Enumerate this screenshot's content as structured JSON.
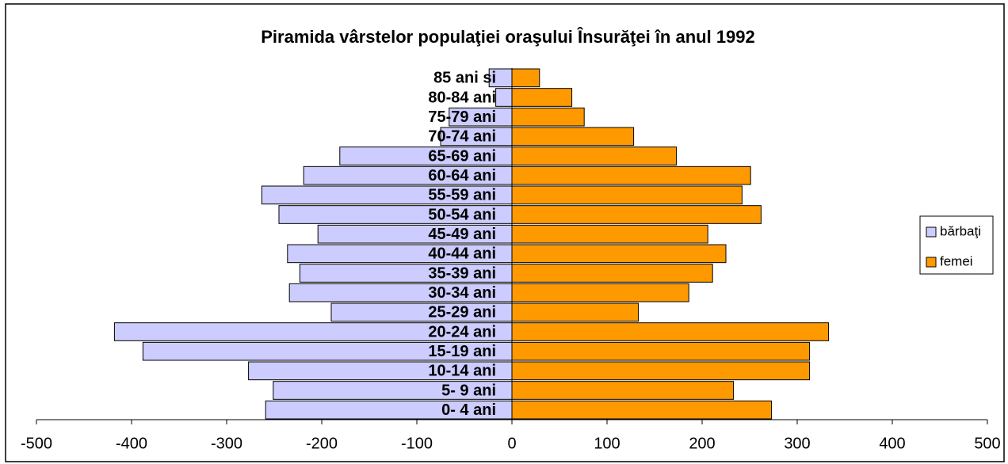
{
  "chart_data": {
    "type": "bar",
    "orientation": "horizontal",
    "barmode": "overlay",
    "title": "Piramida vârstelor populaţiei oraşului Însurăţei în anul 1992",
    "categories": [
      "0- 4 ani",
      "5- 9 ani",
      "10-14 ani",
      "15-19 ani",
      "20-24 ani",
      "25-29 ani",
      "30-34 ani",
      "35-39 ani",
      "40-44 ani",
      "45-49 ani",
      "50-54 ani",
      "55-59 ani",
      "60-64 ani",
      "65-69 ani",
      "70-74 ani",
      "75-79 ani",
      "80-84 ani",
      "85 ani si"
    ],
    "series": [
      {
        "name": "bărbaţi",
        "color": "#ccccff",
        "values": [
          -259,
          -251,
          -277,
          -388,
          -418,
          -190,
          -234,
          -223,
          -236,
          -204,
          -245,
          -263,
          -219,
          -181,
          -75,
          -66,
          -17,
          -24
        ]
      },
      {
        "name": "femei",
        "color": "#ff9900",
        "values": [
          273,
          233,
          313,
          313,
          333,
          133,
          186,
          211,
          225,
          206,
          262,
          242,
          251,
          173,
          128,
          76,
          63,
          29
        ]
      }
    ],
    "xlim": [
      -500,
      500
    ],
    "xticks": [
      -500,
      -400,
      -300,
      -200,
      -100,
      0,
      100,
      200,
      300,
      400,
      500
    ],
    "legend": "right"
  }
}
